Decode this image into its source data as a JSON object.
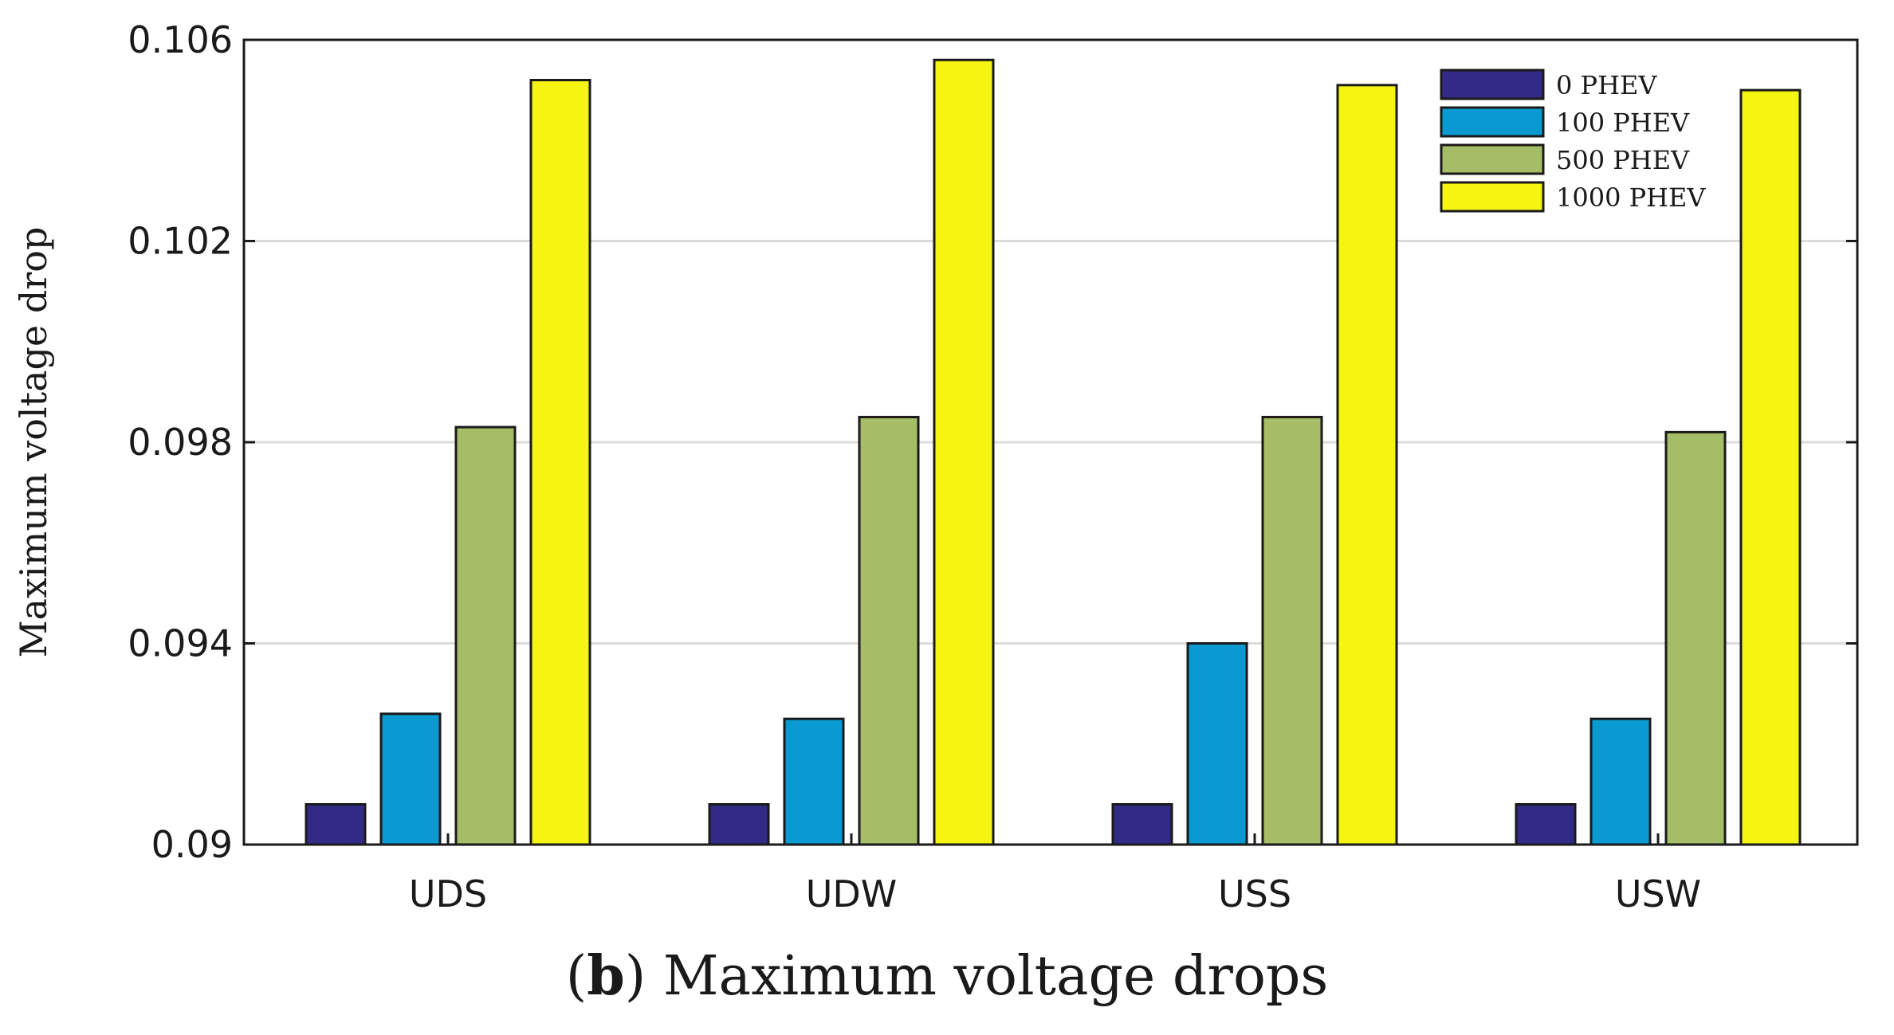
{
  "chart_data": {
    "type": "bar",
    "title": "",
    "xlabel": "",
    "ylabel": "Maximum voltage drop",
    "ylim": [
      0.09,
      0.106
    ],
    "yticks": [
      0.09,
      0.094,
      0.098,
      0.102,
      0.106
    ],
    "ytick_labels": [
      "0.09",
      "0.094",
      "0.098",
      "0.102",
      "0.106"
    ],
    "grid": true,
    "legend_position": "top-right",
    "categories": [
      "UDS",
      "UDW",
      "USS",
      "USW"
    ],
    "series": [
      {
        "name": "0 PHEV",
        "color": "#332a87",
        "values": [
          0.0908,
          0.0908,
          0.0908,
          0.0908
        ]
      },
      {
        "name": "100 PHEV",
        "color": "#0a9ad2",
        "values": [
          0.0926,
          0.0925,
          0.094,
          0.0925
        ]
      },
      {
        "name": "500 PHEV",
        "color": "#a5bd67",
        "values": [
          0.0983,
          0.0985,
          0.0985,
          0.0982
        ]
      },
      {
        "name": "1000 PHEV",
        "color": "#f5f511",
        "values": [
          0.1052,
          0.1056,
          0.1051,
          0.105
        ]
      }
    ]
  },
  "caption": {
    "open": "(",
    "letter": "b",
    "close": ")",
    "text": " Maximum voltage drops"
  }
}
